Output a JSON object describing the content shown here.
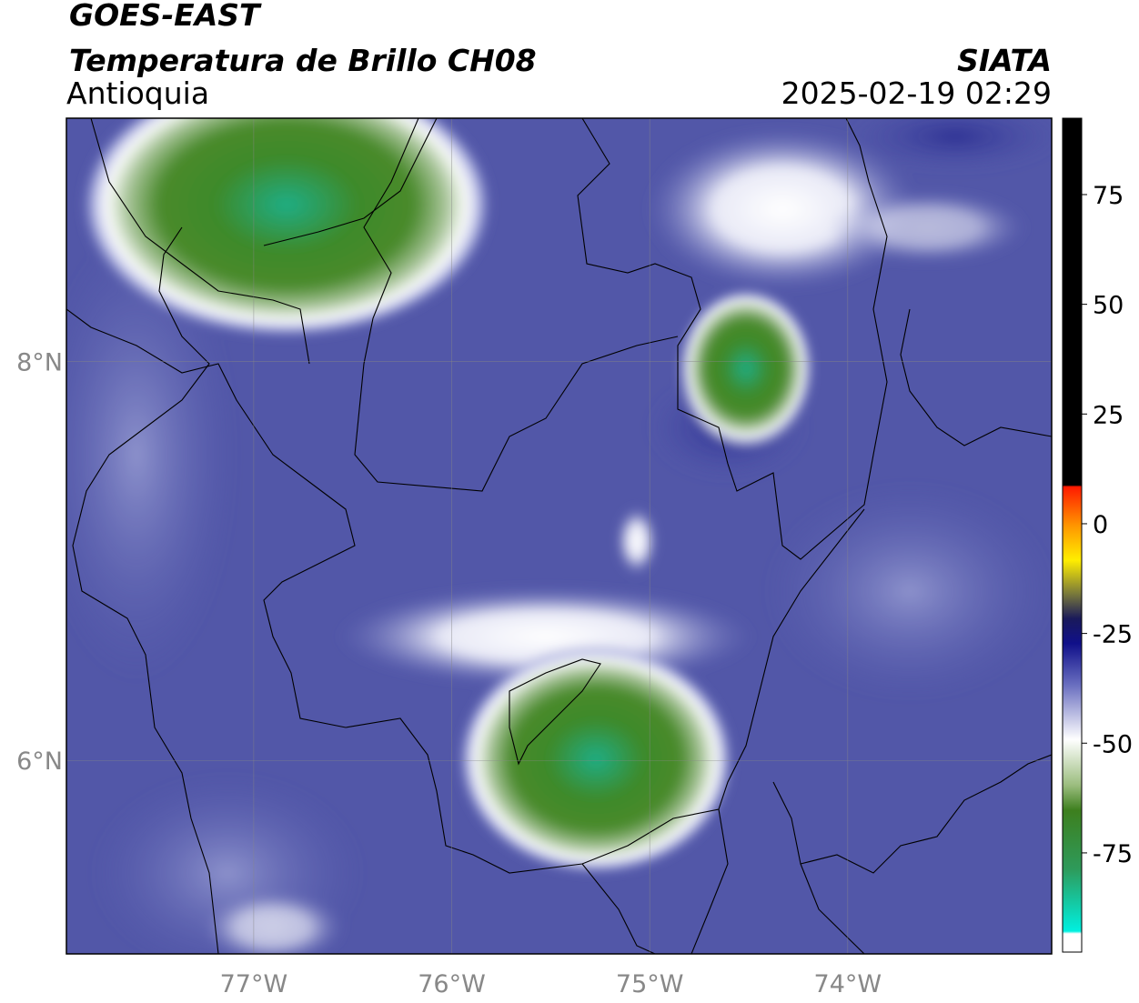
{
  "header": {
    "title": "GOES-EAST",
    "subtitle": "Temperatura de Brillo CH08",
    "region": "Antioquia",
    "source": "SIATA",
    "datetime": "2025-02-19 02:29"
  },
  "map": {
    "lon_range": [
      -77.946,
      -72.97
    ],
    "lat_range": [
      5.03,
      9.22
    ],
    "lon_ticks": [
      {
        "value": -77,
        "label": "77°W"
      },
      {
        "value": -76,
        "label": "76°W"
      },
      {
        "value": -75,
        "label": "75°W"
      },
      {
        "value": -74,
        "label": "74°W"
      }
    ],
    "lat_ticks": [
      {
        "value": 8,
        "label": "8°N"
      },
      {
        "value": 6,
        "label": "6°N"
      }
    ]
  },
  "colorbar": {
    "range": [
      -97.6,
      92.4
    ],
    "ticks": [
      75,
      50,
      25,
      0,
      -25,
      -50,
      -75
    ]
  }
}
